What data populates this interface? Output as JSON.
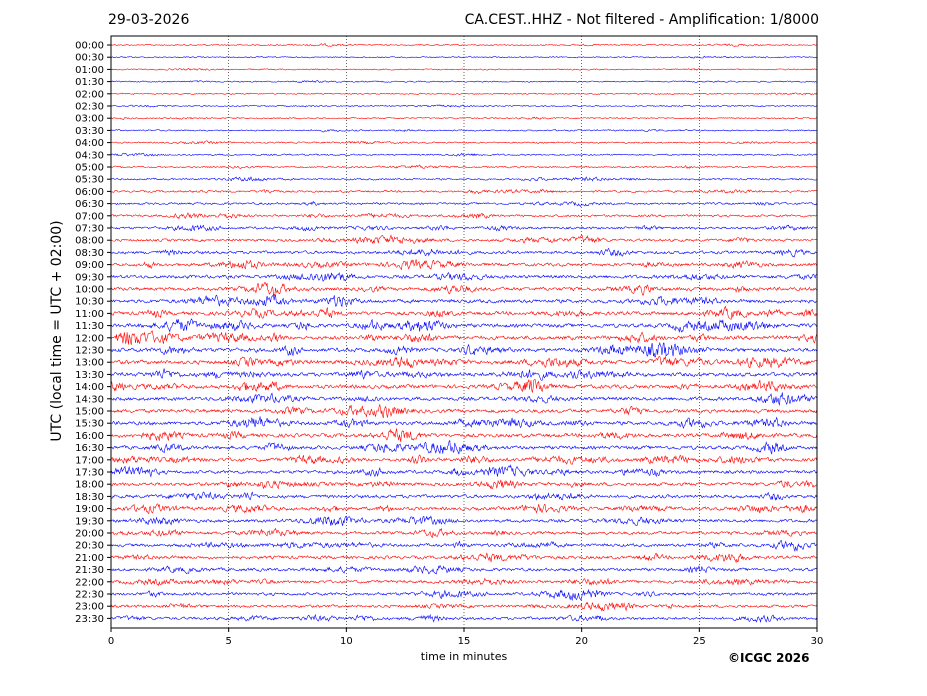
{
  "header": {
    "date": "29-03-2026",
    "title": "CA.CEST..HHZ - Not filtered - Amplification: 1/8000"
  },
  "copyright": "©ICGC 2026",
  "colors": {
    "trace_a": "#ff0000",
    "trace_b": "#0000ff",
    "grid": "#000000"
  },
  "chart_data": {
    "type": "line",
    "title": "CA.CEST..HHZ - Not filtered - Amplification: 1/8000",
    "xlabel": "time in minutes",
    "ylabel": "UTC (local time = UTC + 02:00)",
    "xlim": [
      0,
      30
    ],
    "x_ticks": [
      0,
      5,
      10,
      15,
      20,
      25,
      30
    ],
    "vertical_grid": "dotted at each x tick",
    "rows": [
      "00:00",
      "00:30",
      "01:00",
      "01:30",
      "02:00",
      "02:30",
      "03:00",
      "03:30",
      "04:00",
      "04:30",
      "05:00",
      "05:30",
      "06:00",
      "06:30",
      "07:00",
      "07:30",
      "08:00",
      "08:30",
      "09:00",
      "09:30",
      "10:00",
      "10:30",
      "11:00",
      "11:30",
      "12:00",
      "12:30",
      "13:00",
      "13:30",
      "14:00",
      "14:30",
      "15:00",
      "15:30",
      "16:00",
      "16:30",
      "17:00",
      "17:30",
      "18:00",
      "18:30",
      "19:00",
      "19:30",
      "20:00",
      "20:30",
      "21:00",
      "21:30",
      "22:00",
      "22:30",
      "23:00",
      "23:30"
    ],
    "row_colors_cycle": [
      "red",
      "blue"
    ],
    "relative_noise_level_by_row": [
      0.15,
      0.12,
      0.13,
      0.14,
      0.14,
      0.15,
      0.17,
      0.18,
      0.2,
      0.22,
      0.25,
      0.3,
      0.35,
      0.4,
      0.45,
      0.5,
      0.55,
      0.65,
      0.75,
      0.8,
      0.85,
      0.9,
      0.9,
      0.92,
      0.95,
      1.0,
      1.0,
      0.95,
      0.95,
      0.9,
      0.9,
      0.9,
      0.9,
      0.85,
      0.85,
      0.8,
      0.8,
      0.8,
      0.75,
      0.75,
      0.7,
      0.7,
      0.7,
      0.7,
      0.65,
      0.65,
      0.6,
      0.6
    ]
  }
}
